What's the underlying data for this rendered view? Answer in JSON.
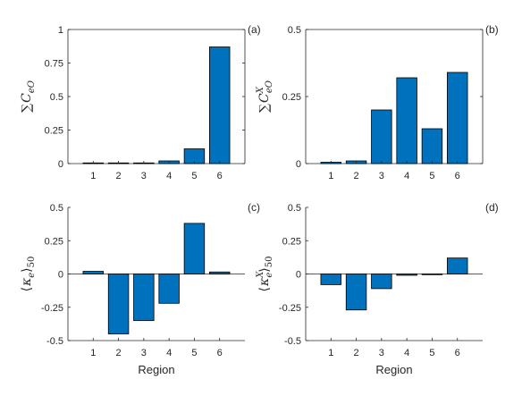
{
  "chart_data": [
    {
      "type": "bar",
      "panel_label": "(a)",
      "ylabel": {
        "prefix": "∑",
        "sym": "C",
        "sub": "eO",
        "sup": ""
      },
      "xlabel": "",
      "categories": [
        "1",
        "2",
        "3",
        "4",
        "5",
        "6"
      ],
      "values": [
        0.005,
        0.005,
        0.005,
        0.02,
        0.11,
        0.87
      ],
      "ylim": [
        0,
        1
      ],
      "yticks": [
        "0",
        "0.25",
        "0.5",
        "0.75",
        "1"
      ],
      "bar_color": "#0072BD",
      "box": true
    },
    {
      "type": "bar",
      "panel_label": "(b)",
      "ylabel": {
        "prefix": "∑",
        "sym": "C",
        "sub": "eO",
        "sup": "X"
      },
      "xlabel": "",
      "categories": [
        "1",
        "2",
        "3",
        "4",
        "5",
        "6"
      ],
      "values": [
        0.005,
        0.01,
        0.2,
        0.32,
        0.13,
        0.34
      ],
      "ylim": [
        0,
        0.5
      ],
      "yticks": [
        "0",
        "0.25",
        "0.5"
      ],
      "bar_color": "#0072BD",
      "box": true
    },
    {
      "type": "bar",
      "panel_label": "(c)",
      "ylabel": {
        "prefix": "⟨",
        "sym": "κ",
        "sub": "e",
        "sup": "",
        "suffix": "⟩",
        "suffix_sub": "50"
      },
      "xlabel": "Region",
      "categories": [
        "1",
        "2",
        "3",
        "4",
        "5",
        "6"
      ],
      "values": [
        0.02,
        -0.45,
        -0.35,
        -0.22,
        0.38,
        0.015
      ],
      "ylim": [
        -0.5,
        0.5
      ],
      "yticks": [
        "-0.5",
        "-0.25",
        "0",
        "0.25",
        "0.5"
      ],
      "bar_color": "#0072BD",
      "box": false
    },
    {
      "type": "bar",
      "panel_label": "(d)",
      "ylabel": {
        "prefix": "⟨",
        "sym": "κ",
        "sub": "e",
        "sup": "X",
        "suffix": "⟩",
        "suffix_sub": "50"
      },
      "xlabel": "Region",
      "categories": [
        "1",
        "2",
        "3",
        "4",
        "5",
        "6"
      ],
      "values": [
        -0.08,
        -0.27,
        -0.11,
        -0.01,
        -0.005,
        0.12
      ],
      "ylim": [
        -0.5,
        0.5
      ],
      "yticks": [
        "-0.5",
        "-0.25",
        "0",
        "0.25",
        "0.5"
      ],
      "bar_color": "#0072BD",
      "box": false
    }
  ]
}
